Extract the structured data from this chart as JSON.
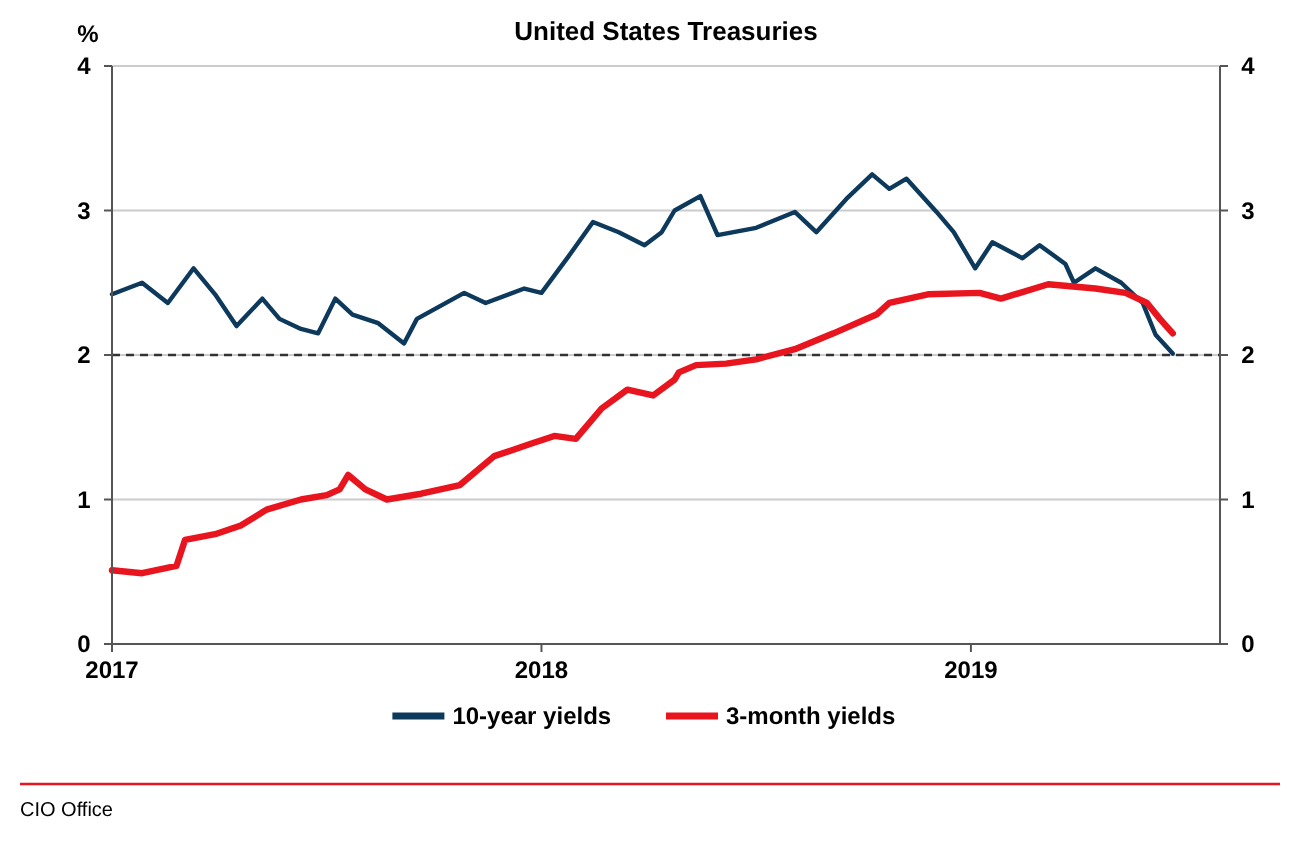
{
  "chart_data": {
    "type": "line",
    "title": "United States Treasuries",
    "ylabel": "%",
    "xlim": [
      2017,
      2019.58
    ],
    "xticks": [
      2017,
      2018,
      2019
    ],
    "ylim": [
      0,
      4
    ],
    "yticks": [
      0,
      1,
      2,
      3,
      4
    ],
    "y2lim": [
      0,
      4
    ],
    "y2ticks": [
      0,
      1,
      2,
      3,
      4
    ],
    "grid": "y",
    "legend": "bottom",
    "line_style": "solid",
    "marker": "none",
    "ref_lines": [
      {
        "axis": "y",
        "value": 2,
        "label": null,
        "color": "#333333",
        "line_style": "dashed"
      }
    ],
    "annotations": [
      "CIO Office"
    ],
    "series": [
      {
        "name": "10-year yields",
        "color": "#0d3a5c",
        "x": [
          2017.0,
          2017.07,
          2017.13,
          2017.19,
          2017.24,
          2017.29,
          2017.35,
          2017.39,
          2017.44,
          2017.48,
          2017.52,
          2017.56,
          2017.62,
          2017.68,
          2017.71,
          2017.82,
          2017.87,
          2017.96,
          2018.0,
          2018.06,
          2018.12,
          2018.18,
          2018.24,
          2018.28,
          2018.31,
          2018.37,
          2018.41,
          2018.5,
          2018.59,
          2018.64,
          2018.71,
          2018.77,
          2018.81,
          2018.85,
          2018.92,
          2018.96,
          2019.01,
          2019.05,
          2019.12,
          2019.16,
          2019.22,
          2019.24,
          2019.29,
          2019.35,
          2019.4,
          2019.43,
          2019.47
        ],
        "values": [
          2.42,
          2.5,
          2.36,
          2.6,
          2.42,
          2.2,
          2.39,
          2.25,
          2.18,
          2.15,
          2.39,
          2.28,
          2.22,
          2.08,
          2.25,
          2.43,
          2.36,
          2.46,
          2.43,
          2.67,
          2.92,
          2.85,
          2.76,
          2.85,
          3.0,
          3.1,
          2.83,
          2.88,
          2.99,
          2.85,
          3.08,
          3.25,
          3.15,
          3.22,
          2.99,
          2.85,
          2.6,
          2.78,
          2.67,
          2.76,
          2.63,
          2.5,
          2.6,
          2.5,
          2.36,
          2.14,
          2.01
        ]
      },
      {
        "name": "3-month yields",
        "color": "#e8141e",
        "x": [
          2017.0,
          2017.07,
          2017.15,
          2017.17,
          2017.24,
          2017.3,
          2017.36,
          2017.44,
          2017.5,
          2017.53,
          2017.55,
          2017.59,
          2017.64,
          2017.72,
          2017.81,
          2017.89,
          2017.97,
          2018.03,
          2018.08,
          2018.14,
          2018.2,
          2018.26,
          2018.31,
          2018.32,
          2018.36,
          2018.43,
          2018.5,
          2018.59,
          2018.68,
          2018.78,
          2018.81,
          2018.9,
          2019.02,
          2019.07,
          2019.18,
          2019.29,
          2019.36,
          2019.41,
          2019.44,
          2019.47
        ],
        "values": [
          0.51,
          0.49,
          0.54,
          0.72,
          0.76,
          0.82,
          0.93,
          1.0,
          1.03,
          1.07,
          1.17,
          1.07,
          1.0,
          1.04,
          1.1,
          1.3,
          1.38,
          1.44,
          1.42,
          1.63,
          1.76,
          1.72,
          1.83,
          1.88,
          1.93,
          1.94,
          1.97,
          2.04,
          2.15,
          2.28,
          2.36,
          2.42,
          2.43,
          2.39,
          2.49,
          2.46,
          2.43,
          2.36,
          2.25,
          2.15
        ]
      }
    ]
  }
}
